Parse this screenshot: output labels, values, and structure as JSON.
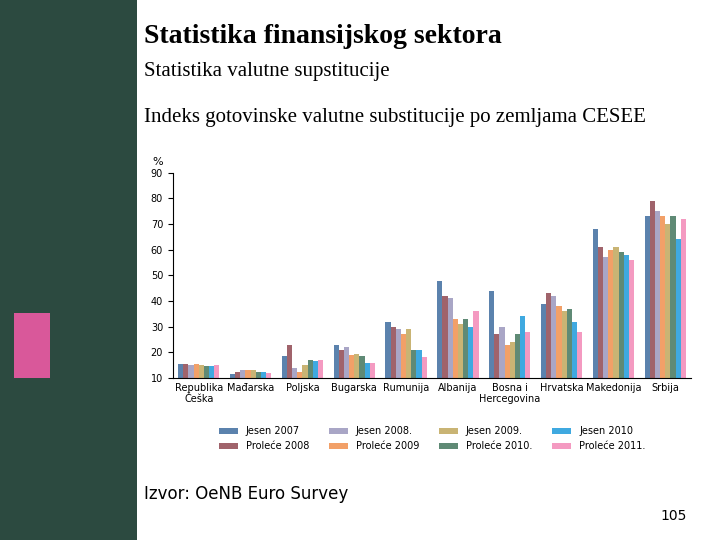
{
  "slide": {
    "title": "Statistika finansijskog sektora",
    "subtitle": "Statistika valutne supstitucije",
    "heading": "Indeks gotovinske valutne substitucije po zemljama CESEE",
    "source": "Izvor: OeNB Euro Survey",
    "page": "105"
  },
  "chart_data": {
    "type": "bar",
    "y_label": "%",
    "categories": [
      "Republika\nČeška",
      "Mađarska",
      "Poljska",
      "Bugarska",
      "Rumunija",
      "Albanija",
      "Bosna i\nHercegovina",
      "Hrvatska",
      "Makedonija",
      "Srbija"
    ],
    "series": [
      {
        "name": "Jesen 2007",
        "color": "#5b82ad",
        "values": [
          15.5,
          11.5,
          18.5,
          23,
          32,
          48,
          44,
          39,
          68,
          73
        ]
      },
      {
        "name": "Proleće 2008",
        "color": "#a0636b",
        "values": [
          15.5,
          12.5,
          23,
          21,
          30,
          42,
          27,
          43,
          61,
          79
        ]
      },
      {
        "name": "Jesen 2008.",
        "color": "#a9a6c6",
        "values": [
          15,
          13,
          14,
          22,
          29,
          41,
          30,
          42,
          57,
          75
        ]
      },
      {
        "name": "Proleće 2009",
        "color": "#f2a068",
        "values": [
          15.5,
          13,
          12.5,
          19,
          27,
          33,
          23,
          38,
          60,
          73
        ]
      },
      {
        "name": "Jesen 2009.",
        "color": "#c9b474",
        "values": [
          15,
          13,
          15,
          19.5,
          29,
          31,
          24,
          36,
          61,
          70
        ]
      },
      {
        "name": "Proleće 2010.",
        "color": "#5f8a75",
        "values": [
          14.5,
          12.5,
          17,
          18.5,
          21,
          33,
          27,
          37,
          59,
          73
        ]
      },
      {
        "name": "Jesen 2010",
        "color": "#3fa9e0",
        "values": [
          14.5,
          12.5,
          16.5,
          16,
          21,
          30,
          34,
          32,
          58,
          64
        ]
      },
      {
        "name": "Proleće 2011.",
        "color": "#f49ac1",
        "values": [
          15,
          12,
          17,
          16,
          18,
          36,
          28,
          28,
          56,
          72
        ]
      }
    ],
    "ylim": [
      10,
      90
    ],
    "yticks": [
      10,
      20,
      30,
      40,
      50,
      60,
      70,
      80,
      90
    ],
    "grid": false,
    "legend": "lower center"
  }
}
